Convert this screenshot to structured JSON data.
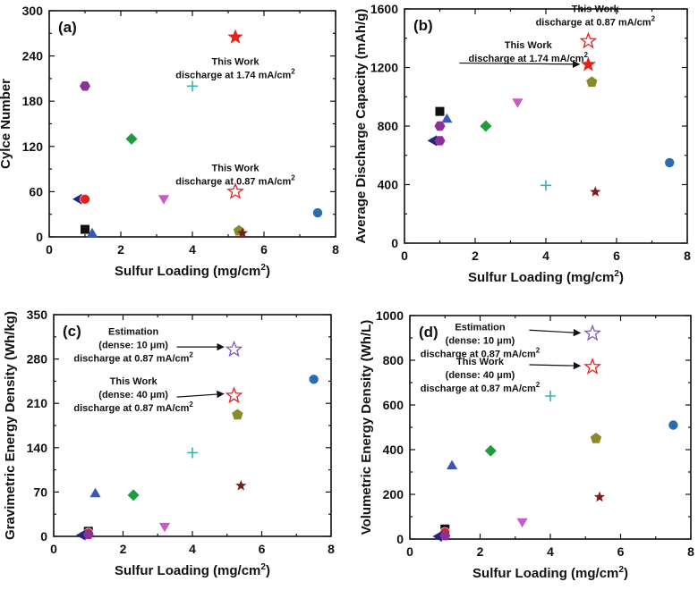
{
  "chart_data": [
    {
      "id": "a",
      "type": "scatter",
      "panel_label": "(a)",
      "xlabel": "Sulfur Loading (mg/cm",
      "xlabel_sup": "2",
      "xlabel_close": ")",
      "ylabel": "Cylce Number",
      "xlim": [
        0,
        8
      ],
      "ylim": [
        0,
        300
      ],
      "xticks": [
        0,
        2,
        4,
        6,
        8
      ],
      "yticks": [
        0,
        60,
        120,
        180,
        240,
        300
      ],
      "points": [
        {
          "x": 1.0,
          "y": 10,
          "marker": "square",
          "color": "#111111"
        },
        {
          "x": 1.2,
          "y": 5,
          "marker": "triangle-up",
          "color": "#3a56b8"
        },
        {
          "x": 0.8,
          "y": 50,
          "marker": "triangle-left",
          "color": "#24247a"
        },
        {
          "x": 1.0,
          "y": 50,
          "marker": "circle",
          "color": "#e8201c"
        },
        {
          "x": 1.0,
          "y": 200,
          "marker": "hexagon",
          "color": "#8a3296"
        },
        {
          "x": 2.3,
          "y": 130,
          "marker": "diamond",
          "color": "#1f9a3c"
        },
        {
          "x": 3.2,
          "y": 50,
          "marker": "triangle-down",
          "color": "#c85cc4"
        },
        {
          "x": 4.0,
          "y": 200,
          "marker": "plus",
          "color": "#35b6b0"
        },
        {
          "x": 5.3,
          "y": 8,
          "marker": "pentagon",
          "color": "#8a8a2c"
        },
        {
          "x": 5.4,
          "y": 5,
          "marker": "star-small",
          "color": "#7a1c1c"
        },
        {
          "x": 7.5,
          "y": 32,
          "marker": "circle",
          "color": "#2b6cb0"
        },
        {
          "x": 5.2,
          "y": 265,
          "marker": "star",
          "color": "#e8201c"
        },
        {
          "x": 5.2,
          "y": 60,
          "marker": "star-open",
          "color": "#e8201c"
        }
      ],
      "annotations": [
        {
          "lines": [
            "This Work",
            "discharge at 1.74 mA/cm"
          ],
          "sup": "2",
          "x": 5.2,
          "y": 228
        },
        {
          "lines": [
            "This Work",
            "discharge at 0.87 mA/cm"
          ],
          "sup": "2",
          "x": 5.2,
          "y": 87
        }
      ]
    },
    {
      "id": "b",
      "type": "scatter",
      "panel_label": "(b)",
      "xlabel": "Sulfur Loading (mg/cm",
      "xlabel_sup": "2",
      "xlabel_close": ")",
      "ylabel": "Average Discharge Capacity  (mAh/g)",
      "xlim": [
        0,
        8
      ],
      "ylim": [
        0,
        1600
      ],
      "xticks": [
        0,
        2,
        4,
        6,
        8
      ],
      "yticks": [
        0,
        400,
        800,
        1200,
        1600
      ],
      "points": [
        {
          "x": 1.0,
          "y": 900,
          "marker": "square",
          "color": "#111111"
        },
        {
          "x": 1.2,
          "y": 850,
          "marker": "triangle-up",
          "color": "#3a56b8"
        },
        {
          "x": 0.8,
          "y": 700,
          "marker": "triangle-left",
          "color": "#24247a"
        },
        {
          "x": 1.0,
          "y": 800,
          "marker": "circle",
          "color": "#e8201c"
        },
        {
          "x": 1.0,
          "y": 800,
          "marker": "hexagon",
          "color": "#8a3296"
        },
        {
          "x": 1.0,
          "y": 700,
          "marker": "hexagon",
          "color": "#8a3296"
        },
        {
          "x": 2.3,
          "y": 800,
          "marker": "diamond",
          "color": "#1f9a3c"
        },
        {
          "x": 3.2,
          "y": 960,
          "marker": "triangle-down",
          "color": "#c85cc4"
        },
        {
          "x": 4.0,
          "y": 395,
          "marker": "plus",
          "color": "#35b6b0"
        },
        {
          "x": 5.3,
          "y": 1100,
          "marker": "pentagon",
          "color": "#8a8a2c"
        },
        {
          "x": 5.4,
          "y": 350,
          "marker": "star-small",
          "color": "#7a1c1c"
        },
        {
          "x": 7.5,
          "y": 550,
          "marker": "circle",
          "color": "#2b6cb0"
        },
        {
          "x": 5.2,
          "y": 1220,
          "marker": "star",
          "color": "#e8201c"
        },
        {
          "x": 5.2,
          "y": 1380,
          "marker": "star-open",
          "color": "#e8201c"
        }
      ],
      "annotations": [
        {
          "lines": [
            "This Work",
            "discharge at 0.87 mA/cm"
          ],
          "sup": "2",
          "x": 5.4,
          "y": 1580
        },
        {
          "lines": [
            "This Work",
            "discharge at 1.74 mA/cm"
          ],
          "sup": "2",
          "x": 3.5,
          "y": 1330
        }
      ]
    },
    {
      "id": "c",
      "type": "scatter",
      "panel_label": "(c)",
      "xlabel": "Sulfur Loading (mg/cm",
      "xlabel_sup": "2",
      "xlabel_close": ")",
      "ylabel": "Gravimetric Energy Density (Wh/kg)",
      "xlim": [
        0,
        8
      ],
      "ylim": [
        0,
        350
      ],
      "xticks": [
        0,
        2,
        4,
        6,
        8
      ],
      "yticks": [
        0,
        70,
        140,
        210,
        280,
        350
      ],
      "points": [
        {
          "x": 1.0,
          "y": 8,
          "marker": "square",
          "color": "#111111"
        },
        {
          "x": 1.0,
          "y": 5,
          "marker": "circle",
          "color": "#e8201c"
        },
        {
          "x": 0.8,
          "y": 2,
          "marker": "triangle-left",
          "color": "#24247a"
        },
        {
          "x": 1.0,
          "y": 3,
          "marker": "hexagon",
          "color": "#8a3296"
        },
        {
          "x": 1.2,
          "y": 68,
          "marker": "triangle-up",
          "color": "#3a56b8"
        },
        {
          "x": 2.3,
          "y": 65,
          "marker": "diamond",
          "color": "#1f9a3c"
        },
        {
          "x": 3.2,
          "y": 15,
          "marker": "triangle-down",
          "color": "#c85cc4"
        },
        {
          "x": 4.0,
          "y": 132,
          "marker": "plus",
          "color": "#35b6b0"
        },
        {
          "x": 5.3,
          "y": 192,
          "marker": "pentagon",
          "color": "#8a8a2c"
        },
        {
          "x": 5.4,
          "y": 80,
          "marker": "star-small",
          "color": "#7a1c1c"
        },
        {
          "x": 7.5,
          "y": 248,
          "marker": "circle",
          "color": "#2b6cb0"
        },
        {
          "x": 5.2,
          "y": 222,
          "marker": "star-open",
          "color": "#e8201c"
        },
        {
          "x": 5.2,
          "y": 295,
          "marker": "star-open",
          "color": "#7b5bbd"
        }
      ],
      "annotations": [
        {
          "lines": [
            "Estimation",
            "(dense: 10 μm)",
            "discharge at 0.87 mA/cm"
          ],
          "sup": "2",
          "x": 2.3,
          "y": 318
        },
        {
          "lines": [
            "This Work",
            "(dense: 40 μm)",
            "discharge at 0.87 mA/cm"
          ],
          "sup": "2",
          "x": 2.3,
          "y": 240
        }
      ]
    },
    {
      "id": "d",
      "type": "scatter",
      "panel_label": "(d)",
      "xlabel": "Sulfur Loading (mg/cm",
      "xlabel_sup": "2",
      "xlabel_close": ")",
      "ylabel": "Volumetric Energy Density (Wh/L)",
      "xlim": [
        0,
        8
      ],
      "ylim": [
        0,
        1000
      ],
      "xticks": [
        0,
        2,
        4,
        6,
        8
      ],
      "yticks": [
        0,
        200,
        400,
        600,
        800,
        1000
      ],
      "points": [
        {
          "x": 1.0,
          "y": 45,
          "marker": "square",
          "color": "#111111"
        },
        {
          "x": 1.0,
          "y": 30,
          "marker": "circle",
          "color": "#e8201c"
        },
        {
          "x": 0.8,
          "y": 12,
          "marker": "triangle-left",
          "color": "#24247a"
        },
        {
          "x": 1.0,
          "y": 15,
          "marker": "hexagon",
          "color": "#8a3296"
        },
        {
          "x": 1.2,
          "y": 330,
          "marker": "triangle-up",
          "color": "#3a56b8"
        },
        {
          "x": 2.3,
          "y": 395,
          "marker": "diamond",
          "color": "#1f9a3c"
        },
        {
          "x": 3.2,
          "y": 75,
          "marker": "triangle-down",
          "color": "#c85cc4"
        },
        {
          "x": 4.0,
          "y": 640,
          "marker": "plus",
          "color": "#35b6b0"
        },
        {
          "x": 5.3,
          "y": 450,
          "marker": "pentagon",
          "color": "#8a8a2c"
        },
        {
          "x": 5.4,
          "y": 188,
          "marker": "star-small",
          "color": "#7a1c1c"
        },
        {
          "x": 7.5,
          "y": 510,
          "marker": "circle",
          "color": "#2b6cb0"
        },
        {
          "x": 5.2,
          "y": 770,
          "marker": "star-open",
          "color": "#e8201c"
        },
        {
          "x": 5.2,
          "y": 920,
          "marker": "star-open",
          "color": "#7b5bbd"
        }
      ],
      "annotations": [
        {
          "lines": [
            "Estimation",
            "(dense: 10 μm)",
            "discharge at 0.87 mA/cm"
          ],
          "sup": "2",
          "x": 2.0,
          "y": 935
        },
        {
          "lines": [
            "This Work",
            "(dense: 40 μm)",
            "discharge at 0.87 mA/cm"
          ],
          "sup": "2",
          "x": 2.0,
          "y": 780
        }
      ]
    }
  ]
}
